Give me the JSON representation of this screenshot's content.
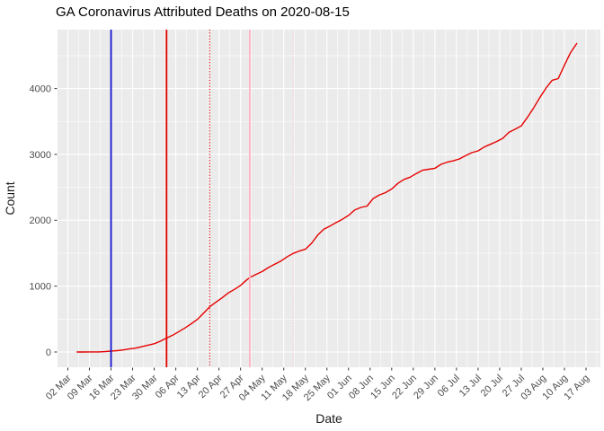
{
  "title": "GA Coronavirus Attributed Deaths on 2020-08-15",
  "x_axis": {
    "label": "Date",
    "ticks": [
      {
        "date": "2020-03-02",
        "label": "02 Mar"
      },
      {
        "date": "2020-03-09",
        "label": "09 Mar"
      },
      {
        "date": "2020-03-16",
        "label": "16 Mar"
      },
      {
        "date": "2020-03-23",
        "label": "23 Mar"
      },
      {
        "date": "2020-03-30",
        "label": "30 Mar"
      },
      {
        "date": "2020-04-06",
        "label": "06 Apr"
      },
      {
        "date": "2020-04-13",
        "label": "13 Apr"
      },
      {
        "date": "2020-04-20",
        "label": "20 Apr"
      },
      {
        "date": "2020-04-27",
        "label": "27 Apr"
      },
      {
        "date": "2020-05-04",
        "label": "04 May"
      },
      {
        "date": "2020-05-11",
        "label": "11 May"
      },
      {
        "date": "2020-05-18",
        "label": "18 May"
      },
      {
        "date": "2020-05-25",
        "label": "25 May"
      },
      {
        "date": "2020-06-01",
        "label": "01 Jun"
      },
      {
        "date": "2020-06-08",
        "label": "08 Jun"
      },
      {
        "date": "2020-06-15",
        "label": "15 Jun"
      },
      {
        "date": "2020-06-22",
        "label": "22 Jun"
      },
      {
        "date": "2020-06-29",
        "label": "29 Jun"
      },
      {
        "date": "2020-07-06",
        "label": "06 Jul"
      },
      {
        "date": "2020-07-13",
        "label": "13 Jul"
      },
      {
        "date": "2020-07-20",
        "label": "20 Jul"
      },
      {
        "date": "2020-07-27",
        "label": "27 Jul"
      },
      {
        "date": "2020-08-03",
        "label": "03 Aug"
      },
      {
        "date": "2020-08-10",
        "label": "10 Aug"
      },
      {
        "date": "2020-08-17",
        "label": "17 Aug"
      }
    ]
  },
  "y_axis": {
    "label": "Count",
    "ticks": [
      {
        "value": 0,
        "label": "0"
      },
      {
        "value": 1000,
        "label": "1000"
      },
      {
        "value": 2000,
        "label": "2000"
      },
      {
        "value": 3000,
        "label": "3000"
      },
      {
        "value": 4000,
        "label": "4000"
      }
    ],
    "minor_values": [
      500,
      1500,
      2500,
      3500,
      4500
    ]
  },
  "colors": {
    "panel_background": "#EBEBEB",
    "grid": "#FFFFFF",
    "tick_text": "#4d4d4d",
    "series_red": "#E60000",
    "vline_blue": "#1212CC",
    "vline_red": "#E40000",
    "vline_pink": "#FFB3C1",
    "vline_pink_light": "#FFC9D2"
  },
  "chart_data": {
    "type": "line",
    "title": "GA Coronavirus Attributed Deaths on 2020-08-15",
    "xlabel": "Date",
    "ylabel": "Count",
    "x_range": [
      "2020-03-02",
      "2020-08-17"
    ],
    "ylim": [
      0,
      4900
    ],
    "grid": "on",
    "legend": "none",
    "vlines": [
      {
        "name": "vline-blue-solid",
        "date": "2020-03-16",
        "style": "solid",
        "color_key": "vline_blue"
      },
      {
        "name": "vline-red-solid",
        "date": "2020-04-03",
        "style": "solid",
        "color_key": "vline_red"
      },
      {
        "name": "vline-red-dotted",
        "date": "2020-04-17",
        "style": "dotted",
        "color_key": "vline_red"
      },
      {
        "name": "vline-pink-solid",
        "date": "2020-04-30",
        "style": "solid",
        "color_key": "vline_pink"
      },
      {
        "name": "vline-pink-dotted",
        "date": "2020-05-14",
        "style": "dotted",
        "color_key": "vline_pink_light"
      }
    ],
    "series": [
      {
        "name": "cumulative-deaths",
        "color_key": "series_red",
        "points": [
          [
            "2020-03-05",
            0
          ],
          [
            "2020-03-07",
            0
          ],
          [
            "2020-03-09",
            1
          ],
          [
            "2020-03-11",
            1
          ],
          [
            "2020-03-12",
            2
          ],
          [
            "2020-03-14",
            6
          ],
          [
            "2020-03-16",
            14
          ],
          [
            "2020-03-18",
            21
          ],
          [
            "2020-03-20",
            32
          ],
          [
            "2020-03-22",
            46
          ],
          [
            "2020-03-24",
            58
          ],
          [
            "2020-03-26",
            80
          ],
          [
            "2020-03-28",
            104
          ],
          [
            "2020-03-30",
            125
          ],
          [
            "2020-04-01",
            163
          ],
          [
            "2020-04-03",
            211
          ],
          [
            "2020-04-05",
            255
          ],
          [
            "2020-04-07",
            310
          ],
          [
            "2020-04-09",
            366
          ],
          [
            "2020-04-11",
            428
          ],
          [
            "2020-04-13",
            495
          ],
          [
            "2020-04-15",
            590
          ],
          [
            "2020-04-17",
            687
          ],
          [
            "2020-04-19",
            755
          ],
          [
            "2020-04-21",
            822
          ],
          [
            "2020-04-23",
            896
          ],
          [
            "2020-04-25",
            950
          ],
          [
            "2020-04-27",
            1012
          ],
          [
            "2020-04-29",
            1095
          ],
          [
            "2020-04-30",
            1132
          ],
          [
            "2020-05-02",
            1178
          ],
          [
            "2020-05-04",
            1222
          ],
          [
            "2020-05-06",
            1282
          ],
          [
            "2020-05-08",
            1330
          ],
          [
            "2020-05-10",
            1378
          ],
          [
            "2020-05-12",
            1442
          ],
          [
            "2020-05-14",
            1495
          ],
          [
            "2020-05-16",
            1532
          ],
          [
            "2020-05-18",
            1560
          ],
          [
            "2020-05-20",
            1650
          ],
          [
            "2020-05-22",
            1775
          ],
          [
            "2020-05-24",
            1863
          ],
          [
            "2020-05-26",
            1913
          ],
          [
            "2020-05-28",
            1965
          ],
          [
            "2020-05-30",
            2015
          ],
          [
            "2020-06-01",
            2074
          ],
          [
            "2020-06-03",
            2155
          ],
          [
            "2020-06-05",
            2195
          ],
          [
            "2020-06-07",
            2215
          ],
          [
            "2020-06-09",
            2330
          ],
          [
            "2020-06-11",
            2385
          ],
          [
            "2020-06-13",
            2420
          ],
          [
            "2020-06-15",
            2475
          ],
          [
            "2020-06-17",
            2560
          ],
          [
            "2020-06-19",
            2620
          ],
          [
            "2020-06-21",
            2655
          ],
          [
            "2020-06-23",
            2710
          ],
          [
            "2020-06-25",
            2760
          ],
          [
            "2020-06-27",
            2775
          ],
          [
            "2020-06-29",
            2790
          ],
          [
            "2020-07-01",
            2849
          ],
          [
            "2020-07-03",
            2882
          ],
          [
            "2020-07-05",
            2902
          ],
          [
            "2020-07-07",
            2932
          ],
          [
            "2020-07-09",
            2982
          ],
          [
            "2020-07-11",
            3026
          ],
          [
            "2020-07-13",
            3054
          ],
          [
            "2020-07-15",
            3112
          ],
          [
            "2020-07-17",
            3154
          ],
          [
            "2020-07-19",
            3195
          ],
          [
            "2020-07-21",
            3243
          ],
          [
            "2020-07-23",
            3335
          ],
          [
            "2020-07-25",
            3383
          ],
          [
            "2020-07-27",
            3432
          ],
          [
            "2020-07-29",
            3562
          ],
          [
            "2020-07-31",
            3705
          ],
          [
            "2020-08-02",
            3860
          ],
          [
            "2020-08-04",
            4005
          ],
          [
            "2020-08-06",
            4125
          ],
          [
            "2020-08-08",
            4152
          ],
          [
            "2020-08-10",
            4355
          ],
          [
            "2020-08-12",
            4545
          ],
          [
            "2020-08-14",
            4685
          ]
        ]
      }
    ]
  }
}
